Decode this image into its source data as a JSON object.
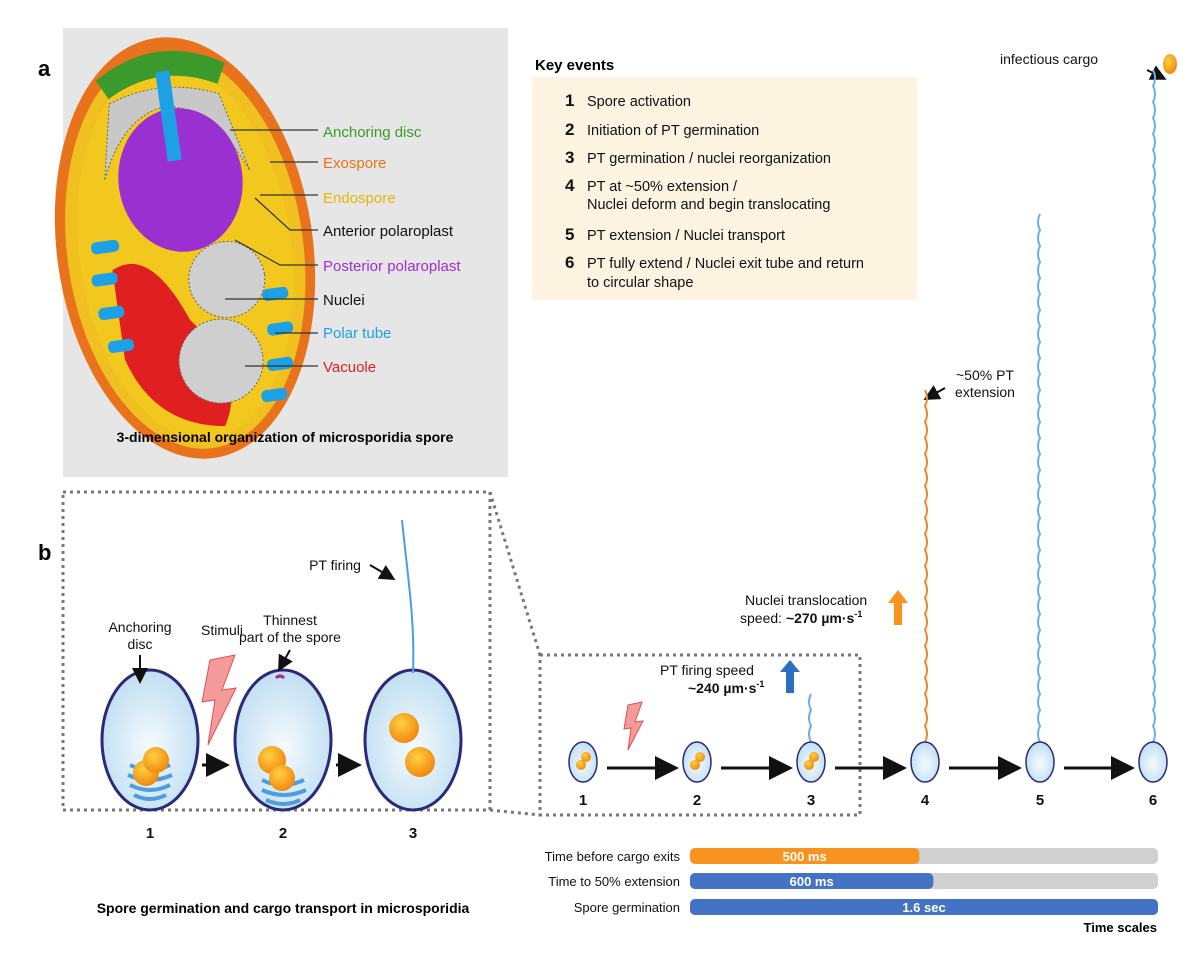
{
  "panel_a": {
    "letter": "a",
    "caption": "3-dimensional organization of microsporidia spore",
    "labels": [
      {
        "text": "Anchoring disc",
        "color": "#3b9a2b"
      },
      {
        "text": "Exospore",
        "color": "#e8731c"
      },
      {
        "text": "Endospore",
        "color": "#e6b800"
      },
      {
        "text": "Anterior polaroplast",
        "color": "#111111"
      },
      {
        "text": "Posterior polaroplast",
        "color": "#9b30d0"
      },
      {
        "text": "Nuclei",
        "color": "#111111"
      },
      {
        "text": "Polar tube",
        "color": "#1ea0e6"
      },
      {
        "text": "Vacuole",
        "color": "#e02020"
      }
    ]
  },
  "key_events": {
    "title": "Key events",
    "items": [
      {
        "num": "1",
        "lines": [
          "Spore activation"
        ]
      },
      {
        "num": "2",
        "lines": [
          "Initiation of PT germination"
        ]
      },
      {
        "num": "3",
        "lines": [
          "PT germination / nuclei reorganization"
        ]
      },
      {
        "num": "4",
        "lines": [
          "PT at ~50% extension /",
          "Nuclei deform and begin translocating"
        ]
      },
      {
        "num": "5",
        "lines": [
          "PT extension / Nuclei transport"
        ]
      },
      {
        "num": "6",
        "lines": [
          "PT fully extend / Nuclei exit tube and return",
          "to circular shape"
        ]
      }
    ]
  },
  "panel_b": {
    "letter": "b",
    "caption": "Spore germination and cargo transport in microsporidia",
    "inset": {
      "anchoring_disc": [
        "Anchoring",
        "disc"
      ],
      "stimuli": "Stimuli",
      "thinnest": [
        "Thinnest",
        "part of the spore"
      ],
      "pt_firing": "PT firing",
      "stages": [
        "1",
        "2",
        "3"
      ]
    },
    "timeline": {
      "stages": [
        "1",
        "2",
        "3",
        "4",
        "5",
        "6"
      ],
      "pt_firing_speed": [
        "PT firing speed",
        "~240 µm·s",
        "-1"
      ],
      "nuclei_speed": [
        "Nuclei translocation",
        "speed: ",
        "~270 µm·s",
        "-1"
      ],
      "half_extension": [
        "~50% PT",
        "extension"
      ],
      "infectious_cargo": "infectious cargo"
    },
    "time_scales": {
      "title": "Time scales",
      "bars": [
        {
          "label": "Time before cargo exits",
          "value": "500 ms",
          "fill": 0.49,
          "color": "#f7931e"
        },
        {
          "label": "Time to 50% extension",
          "value": "600 ms",
          "fill": 0.52,
          "color": "#4472c4"
        },
        {
          "label": "Spore germination",
          "value": "1.6 sec",
          "fill": 1.0,
          "color": "#4472c4"
        }
      ]
    }
  }
}
